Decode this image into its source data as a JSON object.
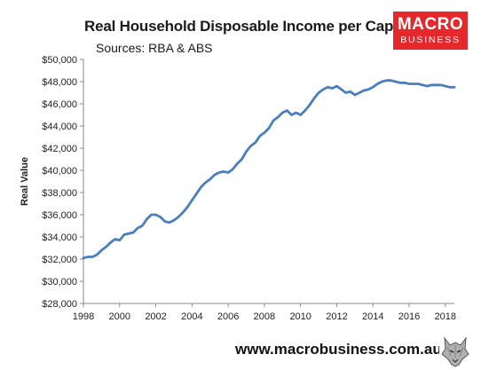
{
  "header": {
    "title": "Real Household Disposable Income per Capita",
    "subtitle": "Sources: RBA & ABS"
  },
  "logo": {
    "line1": "MACRO",
    "line2": "BUSINESS",
    "color": "#e4282b"
  },
  "footer": {
    "url": "www.macrobusiness.com.au"
  },
  "chart_data": {
    "type": "line",
    "title": "Real Household Disposable Income per Capita",
    "subtitle": "Sources: RBA & ABS",
    "xlabel": "",
    "ylabel": "Real Value",
    "xlim": [
      1998,
      2018.5
    ],
    "ylim": [
      28000,
      50000
    ],
    "xticks": [
      1998,
      2000,
      2002,
      2004,
      2006,
      2008,
      2010,
      2012,
      2014,
      2016,
      2018
    ],
    "yticks": [
      28000,
      30000,
      32000,
      34000,
      36000,
      38000,
      40000,
      42000,
      44000,
      46000,
      48000,
      50000
    ],
    "ytick_labels": [
      "$28,000",
      "$30,000",
      "$32,000",
      "$34,000",
      "$36,000",
      "$38,000",
      "$40,000",
      "$42,000",
      "$44,000",
      "$46,000",
      "$48,000",
      "$50,000"
    ],
    "grid": false,
    "line_color": "#4a7ebf",
    "series": [
      {
        "x": [
          1998.0,
          1998.25,
          1998.5,
          1998.75,
          1999.0,
          1999.25,
          1999.5,
          1999.75,
          2000.0,
          2000.25,
          2000.5,
          2000.75,
          2001.0,
          2001.25,
          2001.5,
          2001.75,
          2002.0,
          2002.25,
          2002.5,
          2002.75,
          2003.0,
          2003.25,
          2003.5,
          2003.75,
          2004.0,
          2004.25,
          2004.5,
          2004.75,
          2005.0,
          2005.25,
          2005.5,
          2005.75,
          2006.0,
          2006.25,
          2006.5,
          2006.75,
          2007.0,
          2007.25,
          2007.5,
          2007.75,
          2008.0,
          2008.25,
          2008.5,
          2008.75,
          2009.0,
          2009.25,
          2009.5,
          2009.75,
          2010.0,
          2010.25,
          2010.5,
          2010.75,
          2011.0,
          2011.25,
          2011.5,
          2011.75,
          2012.0,
          2012.25,
          2012.5,
          2012.75,
          2013.0,
          2013.25,
          2013.5,
          2013.75,
          2014.0,
          2014.25,
          2014.5,
          2014.75,
          2015.0,
          2015.25,
          2015.5,
          2015.75,
          2016.0,
          2016.25,
          2016.5,
          2016.75,
          2017.0,
          2017.25,
          2017.5,
          2017.75,
          2018.0,
          2018.25,
          2018.5
        ],
        "y": [
          32100,
          32200,
          32200,
          32400,
          32800,
          33100,
          33500,
          33800,
          33700,
          34200,
          34300,
          34400,
          34800,
          35000,
          35600,
          36000,
          36000,
          35800,
          35400,
          35300,
          35500,
          35800,
          36200,
          36700,
          37300,
          37900,
          38500,
          38900,
          39200,
          39600,
          39800,
          39900,
          39800,
          40100,
          40600,
          41000,
          41700,
          42200,
          42500,
          43100,
          43400,
          43800,
          44500,
          44800,
          45200,
          45400,
          45000,
          45200,
          45000,
          45400,
          45900,
          46500,
          47000,
          47300,
          47500,
          47400,
          47600,
          47300,
          47000,
          47100,
          46800,
          47000,
          47200,
          47300,
          47500,
          47800,
          48000,
          48100,
          48100,
          48000,
          47900,
          47900,
          47800,
          47800,
          47800,
          47700,
          47600,
          47700,
          47700,
          47700,
          47600,
          47500,
          47500
        ]
      }
    ]
  }
}
